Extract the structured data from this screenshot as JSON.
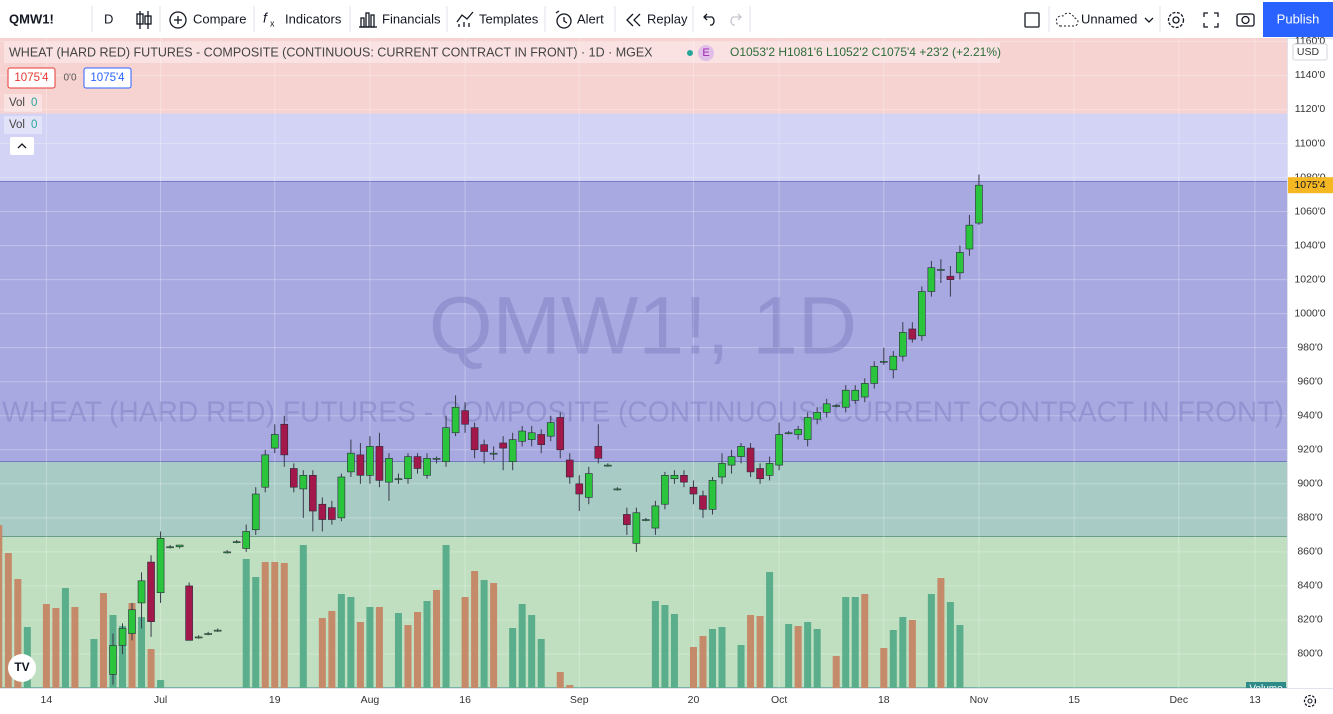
{
  "toolbar": {
    "symbol": "QMW1!",
    "interval": "D",
    "compare": "Compare",
    "indicators": "Indicators",
    "financials": "Financials",
    "templates": "Templates",
    "alert": "Alert",
    "replay": "Replay",
    "layout_name": "Unnamed",
    "publish": "Publish"
  },
  "legend": {
    "title": "WHEAT (HARD RED) FUTURES - COMPOSITE (CONTINUOUS: CURRENT CONTRACT IN FRONT) · 1D · MGEX",
    "exchange_badge": "E",
    "ohlc": "O1053'2 H1081'6 L1052'2 C1075'4 +23'2 (+2.21%)",
    "bid": "1075'4",
    "spread": "0'0",
    "ask": "1075'4",
    "vol_rows": [
      {
        "label": "Vol",
        "value": "0"
      },
      {
        "label": "Vol",
        "value": "0"
      }
    ]
  },
  "watermark": {
    "symbol": "QMW1!, 1D",
    "description": "WHEAT (HARD RED) FUTURES - COMPOSITE (CONTINUOUS: CURRENT CONTRACT IN FRONT)"
  },
  "chart_data": {
    "type": "candlestick",
    "categories": [
      null,
      null,
      null,
      null,
      null,
      "14",
      null,
      null,
      null,
      null,
      null,
      null,
      null,
      null,
      null,
      null,
      null,
      "Jul",
      null,
      null,
      null,
      null,
      null,
      null,
      null,
      null,
      null,
      null,
      null,
      "19",
      null,
      null,
      null,
      null,
      null,
      null,
      null,
      null,
      null,
      "Aug",
      null,
      null,
      null,
      null,
      null,
      null,
      null,
      null,
      null,
      "16",
      null,
      null,
      null,
      null,
      null,
      null,
      null,
      null,
      null,
      null,
      null,
      "Sep",
      null,
      null,
      null,
      null,
      null,
      null,
      null,
      null,
      null,
      null,
      null,
      "20",
      null,
      null,
      null,
      null,
      null,
      null,
      null,
      null,
      "Oct",
      null,
      null,
      null,
      null,
      null,
      null,
      null,
      null,
      null,
      null,
      "18",
      null,
      null,
      null,
      null,
      null,
      null,
      null,
      null,
      null,
      "Nov",
      null,
      null,
      null,
      null,
      null,
      null,
      null,
      null,
      null,
      "15",
      null,
      null,
      null,
      null,
      null,
      null,
      null,
      null,
      null,
      null,
      "Dec",
      null,
      null,
      null,
      null,
      null,
      null,
      null,
      "13"
    ],
    "open": [
      null,
      null,
      null,
      null,
      null,
      null,
      null,
      null,
      null,
      null,
      null,
      null,
      788,
      805,
      812,
      830,
      854,
      836,
      863,
      863,
      840,
      810,
      812,
      814,
      860,
      866,
      862,
      873,
      898,
      921,
      935,
      909,
      897,
      905,
      888,
      886,
      880,
      907,
      917,
      905,
      922,
      901,
      903,
      903,
      916,
      905,
      915,
      913,
      930,
      943,
      933,
      923,
      918,
      924,
      913,
      925,
      926,
      929,
      928,
      939,
      914,
      900,
      892,
      922,
      911,
      897,
      882,
      865,
      879,
      874,
      888,
      903,
      905,
      898,
      893,
      885,
      904,
      911,
      916,
      921,
      909,
      905,
      911,
      930,
      929,
      926,
      938,
      942,
      946,
      945,
      949,
      951,
      959,
      972,
      967,
      975,
      991,
      987,
      1013,
      1026,
      1022,
      1024,
      1038,
      1053.25,
      null,
      null,
      null,
      null,
      null,
      null,
      null,
      null,
      null,
      null,
      null,
      null,
      null,
      null,
      null,
      null,
      null,
      null,
      null,
      null,
      null,
      null,
      null,
      null,
      null,
      null,
      null,
      null,
      null
    ],
    "high": [
      null,
      null,
      null,
      null,
      null,
      null,
      null,
      null,
      null,
      null,
      null,
      null,
      812,
      818,
      830,
      848,
      858,
      872,
      864,
      864,
      842,
      811,
      813,
      815,
      861,
      867,
      876,
      898,
      920,
      935,
      940,
      912,
      908,
      908,
      892,
      890,
      906,
      926,
      924,
      928,
      930,
      918,
      906,
      918,
      918,
      918,
      916,
      940,
      952,
      948,
      936,
      926,
      922,
      928,
      930,
      934,
      934,
      932,
      940,
      942,
      918,
      905,
      910,
      935,
      912,
      898,
      886,
      886,
      880,
      890,
      907,
      908,
      908,
      902,
      896,
      904,
      918,
      920,
      924,
      924,
      912,
      916,
      936,
      931,
      934,
      942,
      945,
      950,
      947,
      958,
      958,
      962,
      972,
      980,
      978,
      995,
      995,
      1016,
      1031,
      1032,
      1028,
      1040,
      1058,
      1081.75,
      null,
      null,
      null,
      null,
      null,
      null,
      null,
      null,
      null,
      null,
      null,
      null,
      null,
      null,
      null,
      null,
      null,
      null,
      null,
      null,
      null,
      null,
      null,
      null,
      null,
      null,
      null,
      null,
      null
    ],
    "low": [
      null,
      null,
      null,
      null,
      null,
      null,
      null,
      null,
      null,
      null,
      null,
      null,
      782,
      800,
      808,
      815,
      810,
      830,
      862,
      862,
      808,
      809,
      811,
      813,
      859,
      865,
      860,
      870,
      895,
      918,
      910,
      895,
      880,
      872,
      872,
      876,
      878,
      904,
      900,
      900,
      898,
      890,
      900,
      900,
      906,
      903,
      912,
      910,
      928,
      930,
      915,
      912,
      914,
      908,
      908,
      922,
      922,
      918,
      925,
      915,
      900,
      884,
      888,
      912,
      910,
      896,
      870,
      860,
      878,
      870,
      885,
      900,
      898,
      888,
      880,
      882,
      900,
      906,
      912,
      904,
      900,
      902,
      908,
      929,
      926,
      922,
      935,
      939,
      945,
      942,
      947,
      948,
      956,
      970,
      962,
      972,
      983,
      984,
      1010,
      1018,
      1010,
      1020,
      1034,
      1052.25,
      null,
      null,
      null,
      null,
      null,
      null,
      null,
      null,
      null,
      null,
      null,
      null,
      null,
      null,
      null,
      null,
      null,
      null,
      null,
      null,
      null,
      null,
      null,
      null,
      null,
      null,
      null,
      null,
      null
    ],
    "close": [
      null,
      null,
      null,
      null,
      null,
      null,
      null,
      null,
      null,
      null,
      null,
      null,
      805,
      815,
      826,
      843,
      819,
      868,
      863,
      864,
      808,
      810,
      812,
      814,
      860,
      866,
      872,
      894,
      917,
      929,
      917,
      898,
      905,
      884,
      879,
      879,
      904,
      918,
      905,
      922,
      902,
      915,
      903,
      916,
      909,
      915,
      915,
      933,
      945,
      935,
      920,
      919,
      918,
      921,
      926,
      931,
      930,
      923,
      936,
      920,
      904,
      894,
      906,
      915,
      911,
      897,
      876,
      883,
      879,
      887,
      905,
      905,
      901,
      894,
      885,
      902,
      912,
      916,
      922,
      907,
      903,
      912,
      929,
      930,
      932,
      939,
      942,
      947,
      946,
      955,
      955,
      959,
      969,
      972,
      975,
      989,
      985,
      1013,
      1027,
      1026,
      1020,
      1036,
      1052,
      1075.5,
      null,
      null,
      null,
      null,
      null,
      null,
      null,
      null,
      null,
      null,
      null,
      null,
      null,
      null,
      null,
      null,
      null,
      null,
      null,
      null,
      null,
      null,
      null,
      null,
      null,
      null,
      null,
      null,
      null
    ],
    "up_color": "#2bc43d",
    "down_color": "#a3184a",
    "volume": {
      "name": "Volume",
      "values": [
        163,
        135,
        109,
        61,
        null,
        84,
        80,
        100,
        81,
        null,
        49,
        95,
        73,
        62,
        85,
        71,
        39,
        8,
        null,
        null,
        null,
        null,
        null,
        null,
        null,
        null,
        129,
        111,
        126,
        126,
        125,
        null,
        143,
        null,
        70,
        77,
        94,
        91,
        66,
        81,
        81,
        null,
        75,
        63,
        76,
        87,
        98,
        143,
        null,
        91,
        117,
        108,
        105,
        null,
        60,
        84,
        73,
        49,
        null,
        16,
        3,
        null,
        null,
        null,
        null,
        null,
        null,
        null,
        null,
        87,
        83,
        74,
        null,
        41,
        52,
        59,
        61,
        null,
        43,
        73,
        72,
        116,
        null,
        64,
        62,
        66,
        59,
        null,
        32,
        91,
        91,
        94,
        null,
        40,
        58,
        71,
        68,
        null,
        94,
        110,
        86,
        63,
        null,
        null,
        null,
        null,
        null,
        null,
        null,
        null,
        null,
        null,
        null,
        null,
        null,
        null,
        null,
        null,
        null,
        null,
        null,
        null,
        null,
        null,
        null,
        null,
        null,
        null,
        null,
        null,
        null,
        null,
        null
      ],
      "colors": [
        "#c48a6a",
        "#c48a6a",
        "#c48a6a",
        "#5aae8c",
        null,
        "#c48a6a",
        "#c48a6a",
        "#5aae8c",
        "#c48a6a",
        null,
        "#5aae8c",
        "#c48a6a",
        "#5aae8c",
        "#5aae8c",
        "#c48a6a",
        "#5aae8c",
        "#c48a6a",
        "#5aae8c",
        null,
        null,
        null,
        null,
        null,
        null,
        null,
        null,
        "#5aae8c",
        "#5aae8c",
        "#c48a6a",
        "#c48a6a",
        "#c48a6a",
        null,
        "#5aae8c",
        null,
        "#c48a6a",
        "#c48a6a",
        "#5aae8c",
        "#5aae8c",
        "#c48a6a",
        "#5aae8c",
        "#c48a6a",
        null,
        "#5aae8c",
        "#c48a6a",
        "#c48a6a",
        "#5aae8c",
        "#c48a6a",
        "#5aae8c",
        null,
        "#c48a6a",
        "#c48a6a",
        "#5aae8c",
        "#c48a6a",
        null,
        "#5aae8c",
        "#5aae8c",
        "#5aae8c",
        "#5aae8c",
        null,
        "#c48a6a",
        "#c48a6a",
        null,
        null,
        null,
        null,
        null,
        null,
        null,
        null,
        "#5aae8c",
        "#5aae8c",
        "#5aae8c",
        null,
        "#c48a6a",
        "#c48a6a",
        "#5aae8c",
        "#5aae8c",
        null,
        "#5aae8c",
        "#c48a6a",
        "#c48a6a",
        "#5aae8c",
        null,
        "#5aae8c",
        "#c48a6a",
        "#5aae8c",
        "#5aae8c",
        null,
        "#c48a6a",
        "#5aae8c",
        "#5aae8c",
        "#c48a6a",
        null,
        "#c48a6a",
        "#5aae8c",
        "#5aae8c",
        "#c48a6a",
        null,
        "#5aae8c",
        "#c48a6a",
        "#5aae8c",
        "#5aae8c",
        null,
        null,
        null,
        null,
        null,
        null,
        null,
        null,
        null,
        null,
        null,
        null,
        null,
        null,
        null,
        null,
        null,
        null,
        null,
        null,
        null,
        null,
        null,
        null,
        null,
        null,
        null,
        null,
        null,
        null,
        null
      ]
    },
    "ylim": [
      780,
      1162
    ],
    "yticks": [
      {
        "value": 800,
        "label": "800'0"
      },
      {
        "value": 820,
        "label": "820'0"
      },
      {
        "value": 840,
        "label": "840'0"
      },
      {
        "value": 860,
        "label": "860'0"
      },
      {
        "value": 880,
        "label": "880'0"
      },
      {
        "value": 900,
        "label": "900'0"
      },
      {
        "value": 920,
        "label": "920'0"
      },
      {
        "value": 940,
        "label": "940'0"
      },
      {
        "value": 960,
        "label": "960'0"
      },
      {
        "value": 980,
        "label": "980'0"
      },
      {
        "value": 1000,
        "label": "1000'0"
      },
      {
        "value": 1020,
        "label": "1020'0"
      },
      {
        "value": 1040,
        "label": "1040'0"
      },
      {
        "value": 1060,
        "label": "1060'0"
      },
      {
        "value": 1080,
        "label": "1080'0"
      },
      {
        "value": 1100,
        "label": "1100'0"
      },
      {
        "value": 1120,
        "label": "1120'0"
      },
      {
        "value": 1140,
        "label": "1140'0"
      },
      {
        "value": 1160,
        "label": "1160'0"
      }
    ],
    "grid": true,
    "currency": "USD",
    "last_price_label": "1075'4",
    "bands": [
      {
        "from": 1117.6,
        "to": 1162,
        "color": "#f6d3d1",
        "border": "#f6d3d1"
      },
      {
        "from": 1077.6,
        "to": 1117.6,
        "color": "#d3d3f5",
        "border": "#3f3fa0"
      },
      {
        "from": 912.9,
        "to": 1077.6,
        "color": "#a9a9e2",
        "border": "#3f3fa0"
      },
      {
        "from": 868.8,
        "to": 912.9,
        "color": "#a8cbc6",
        "border": "#2f6f55"
      },
      {
        "from": 780,
        "to": 868.8,
        "color": "#bfdfc0",
        "border": "#2f8a8a"
      }
    ]
  }
}
